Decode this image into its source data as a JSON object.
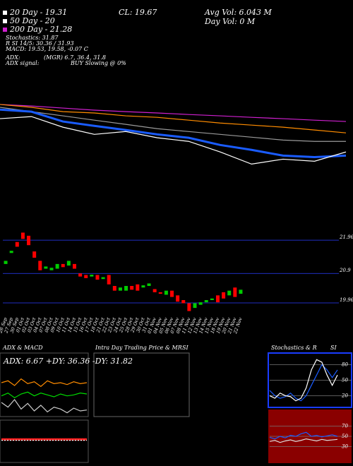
{
  "header": {
    "left": [
      "20 Day - 19.31",
      "50 Day - 20",
      "200 Day - 21.28",
      "Stochastics: 31.87",
      "R SI 14/5: 30.36 / 31.93",
      "MACD: 19.53, 19.58, -0.07 C"
    ],
    "adx": "ADX:",
    "adx_values": "(MGR) 6.7, 36.4, 31.8",
    "adx_signal": "ADX  signal:",
    "signal": "BUY Slowing @ 0%",
    "close": "CL: 19.67",
    "avg_vol": "Avg Vol: 6.043 M",
    "day_vol": "Day Vol: 0   M"
  },
  "chart_data": [
    {
      "type": "line",
      "ylim": [
        18,
        22.85
      ],
      "series": [
        {
          "color": "#d020d0",
          "values": [
            22.18,
            22.1,
            21.99,
            21.88,
            21.8,
            21.73,
            21.65,
            21.58,
            21.5,
            21.43,
            21.35,
            21.28
          ]
        },
        {
          "color": "#ff8c00",
          "values": [
            22.18,
            22.03,
            21.8,
            21.73,
            21.58,
            21.5,
            21.35,
            21.2,
            21.09,
            20.98,
            20.83,
            20.68
          ]
        },
        {
          "color": "#9a9a9a",
          "values": [
            22.03,
            21.8,
            21.58,
            21.35,
            21.13,
            20.9,
            20.75,
            20.6,
            20.45,
            20.3,
            20.23,
            20.23
          ]
        },
        {
          "color": "#1a5cff",
          "values": [
            21.91,
            21.8,
            21.28,
            21.05,
            20.83,
            20.6,
            20.42,
            20.04,
            19.78,
            19.48,
            19.4,
            19.48
          ]
        },
        {
          "color": "#ffffff",
          "values": [
            21.43,
            21.54,
            20.98,
            20.6,
            20.75,
            20.42,
            20.23,
            19.67,
            19.03,
            19.29,
            19.18,
            19.67
          ]
        }
      ]
    },
    {
      "type": "candlestick",
      "ylim": [
        19.6,
        22.3
      ],
      "yticks": [
        21.96,
        20.9,
        19.96
      ],
      "up_color": "#00cc00",
      "down_color": "#ff0000",
      "categories": [
        "26 Sep",
        "27 Sep",
        "30 Sep",
        "01 Oct",
        "02 Oct",
        "03 Oct",
        "04 Oct",
        "07 Oct",
        "08 Oct",
        "09 Oct",
        "10 Oct",
        "11 Oct",
        "14 Oct",
        "15 Oct",
        "16 Oct",
        "17 Oct",
        "18 Oct",
        "21 Oct",
        "22 Oct",
        "23 Oct",
        "24 Oct",
        "25 Oct",
        "28 Oct",
        "29 Oct",
        "30 Oct",
        "31 Oct",
        "01 Nov",
        "04 Nov",
        "05 Nov",
        "06 Nov",
        "07 Nov",
        "08 Nov",
        "11 Nov",
        "12 Nov",
        "13 Nov",
        "14 Nov",
        "15 Nov",
        "18 Nov",
        "19 Nov",
        "20 Nov",
        "21 Nov",
        "22 Nov"
      ],
      "open": [
        21.2,
        21.55,
        21.9,
        22.2,
        22.1,
        21.6,
        21.3,
        21.05,
        21.0,
        21.05,
        21.2,
        21.15,
        21.2,
        20.9,
        20.85,
        20.8,
        20.85,
        20.72,
        20.85,
        20.5,
        20.35,
        20.35,
        20.5,
        20.55,
        20.45,
        20.5,
        20.4,
        20.3,
        20.22,
        20.35,
        20.2,
        20.05,
        19.95,
        19.8,
        19.9,
        19.98,
        20.05,
        20.2,
        20.3,
        20.2,
        20.45,
        20.25
      ],
      "close": [
        21.3,
        21.62,
        21.75,
        22.0,
        21.8,
        21.4,
        21.0,
        21.12,
        21.08,
        21.2,
        21.1,
        21.3,
        21.05,
        20.8,
        20.75,
        20.86,
        20.7,
        20.78,
        20.55,
        20.35,
        20.45,
        20.5,
        20.38,
        20.35,
        20.52,
        20.58,
        20.3,
        20.25,
        20.35,
        20.15,
        20.0,
        19.95,
        19.7,
        19.95,
        19.98,
        20.05,
        20.1,
        19.98,
        20.1,
        20.35,
        20.15,
        20.38
      ]
    },
    {
      "type": "line",
      "title": "ADX  & MACD",
      "label": "ADX: 6.67  +DY: 36.36  -DY: 31.82",
      "ylim": [
        0,
        60
      ],
      "series": [
        {
          "color": "#ff8c00",
          "values": [
            36,
            38,
            33,
            40,
            35,
            37,
            32,
            38,
            35,
            36,
            34,
            37,
            35,
            36
          ]
        },
        {
          "color": "#00dd00",
          "values": [
            22,
            25,
            20,
            24,
            26,
            22,
            25,
            23,
            21,
            24,
            22,
            23,
            25,
            24
          ]
        },
        {
          "color": "#cccccc",
          "values": [
            15,
            10,
            18,
            8,
            14,
            6,
            12,
            5,
            10,
            8,
            4,
            9,
            6,
            7
          ]
        }
      ]
    },
    {
      "type": "line",
      "ylim": [
        -1,
        1
      ],
      "series": [
        {
          "color": "#ff2020",
          "values": [
            0.1,
            0.1,
            0.1,
            0.1,
            0.1,
            0.1,
            0.1,
            0.1,
            0.1,
            0.1,
            0.1,
            0.1,
            0.1,
            0.1
          ]
        },
        {
          "color": "#ffffff",
          "values": [
            0.05,
            0.05,
            0.05,
            0.05,
            0.05,
            0.05,
            0.05,
            0.05,
            0.05,
            0.05,
            0.05,
            0.05,
            0.05,
            0.05
          ]
        }
      ]
    },
    {
      "type": "line",
      "title": "Intra Day Trading Price & MR",
      "title_right": "SI",
      "ylim": [
        0,
        1
      ],
      "series": []
    },
    {
      "type": "line",
      "title": "Stochastics & R",
      "title_right": "SI",
      "ylim": [
        0,
        100
      ],
      "yticks": [
        20,
        50,
        80
      ],
      "series": [
        {
          "color": "#1a5cff",
          "values": [
            30,
            20,
            15,
            18,
            25,
            15,
            10,
            20,
            40,
            60,
            80,
            70,
            55,
            70
          ]
        },
        {
          "color": "#ffffff",
          "values": [
            20,
            15,
            25,
            20,
            18,
            10,
            15,
            35,
            70,
            90,
            85,
            60,
            40,
            60
          ]
        }
      ]
    },
    {
      "type": "line",
      "ylim": [
        0,
        100
      ],
      "yticks": [
        30,
        50,
        70
      ],
      "series": [
        {
          "color": "#1a5cff",
          "values": [
            48,
            45,
            50,
            47,
            52,
            50,
            55,
            58,
            50,
            52,
            49,
            51,
            53,
            50
          ]
        },
        {
          "color": "#dddddd",
          "values": [
            40,
            42,
            38,
            41,
            43,
            40,
            42,
            45,
            43,
            41,
            44,
            42,
            43,
            44
          ]
        }
      ]
    }
  ]
}
